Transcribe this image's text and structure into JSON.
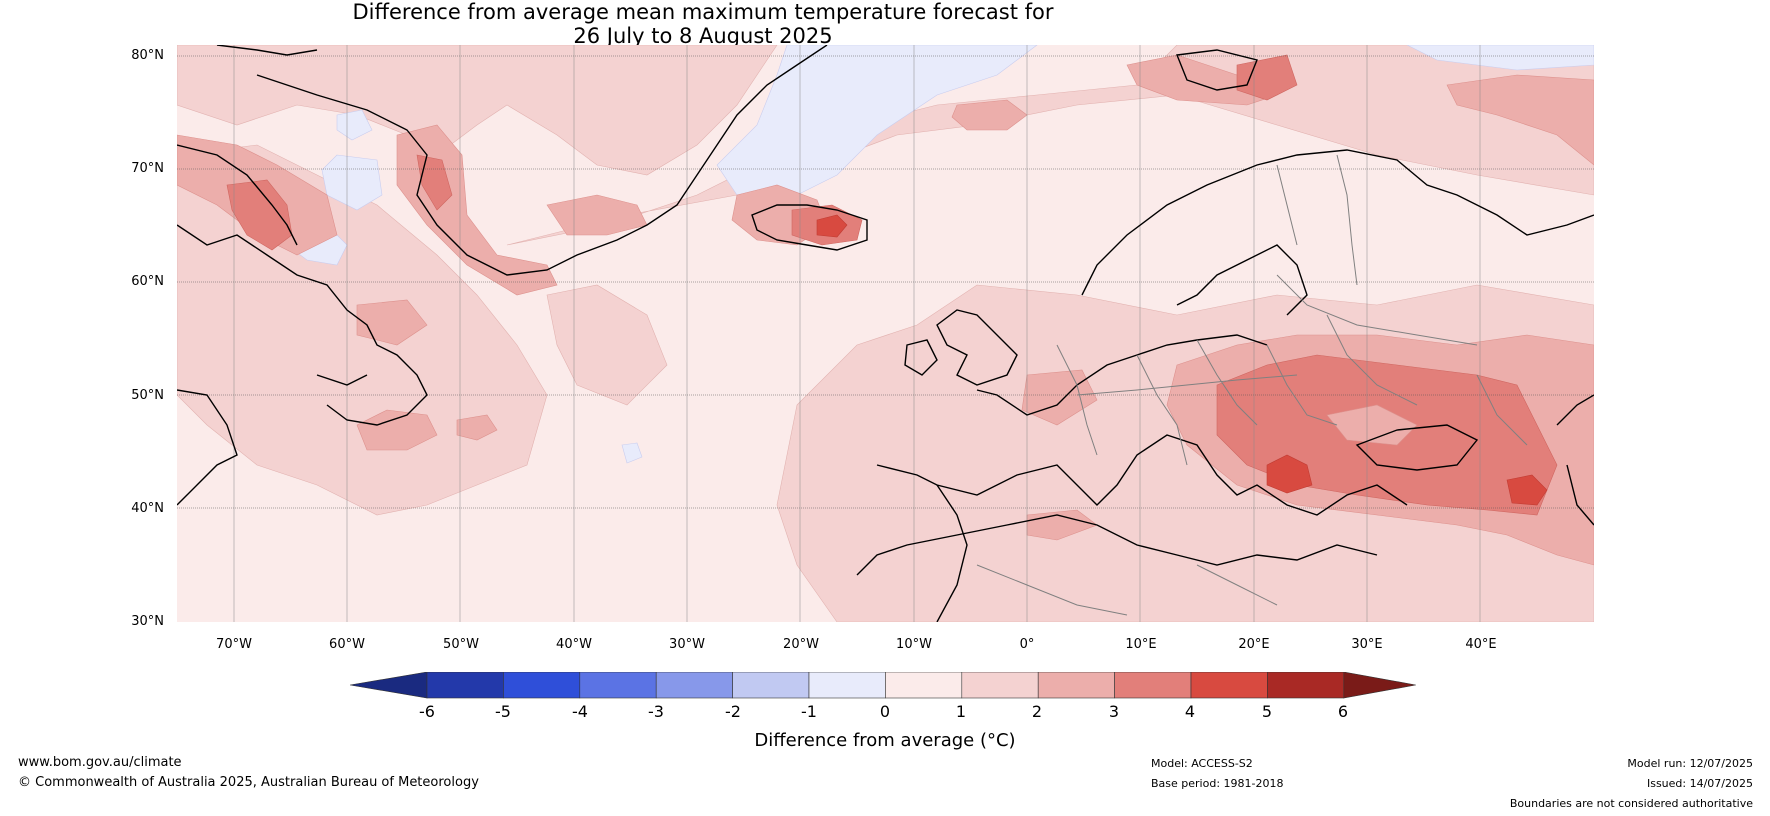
{
  "header": {
    "title_line1": "Difference from average mean maximum temperature forecast for",
    "title_line2": "26 July to 8 August 2025"
  },
  "axes": {
    "lat_labels": [
      "80°N",
      "70°N",
      "60°N",
      "50°N",
      "40°N",
      "30°N"
    ],
    "lon_labels": [
      "70°W",
      "60°W",
      "50°W",
      "40°W",
      "30°W",
      "20°W",
      "10°W",
      "0°",
      "10°E",
      "20°E",
      "30°E",
      "40°E"
    ],
    "lat_range": [
      30,
      80
    ],
    "lon_range": [
      -75,
      50
    ]
  },
  "colorbar": {
    "ticks": [
      "-6",
      "-5",
      "-4",
      "-3",
      "-2",
      "-1",
      "0",
      "1",
      "2",
      "3",
      "4",
      "5",
      "6"
    ],
    "label": "Difference from average (°C)",
    "colors": {
      "under": "#1a2a80",
      "b_m6_m5": "#2339aa",
      "b_m5_m4": "#2f4fd9",
      "b_m4_m3": "#5b73e4",
      "b_m3_m2": "#8798ea",
      "b_m2_m1": "#c1c9f2",
      "b_m1_0": "#e8ebfb",
      "b_0_1": "#fbebea",
      "b_1_2": "#f4d2d1",
      "b_2_3": "#ecaeab",
      "b_3_4": "#e27f7a",
      "b_4_5": "#d84a40",
      "b_5_6": "#a92925",
      "over": "#7a1b18"
    }
  },
  "footer": {
    "website": "www.bom.gov.au/climate",
    "copyright": "© Commonwealth of Australia 2025, Australian Bureau of Meteorology",
    "model": "Model: ACCESS-S2",
    "base_period": "Base period: 1981-2018",
    "model_run": "Model run: 12/07/2025",
    "issued": "Issued: 14/07/2025",
    "disclaimer": "Boundaries are not considered authoritative"
  }
}
